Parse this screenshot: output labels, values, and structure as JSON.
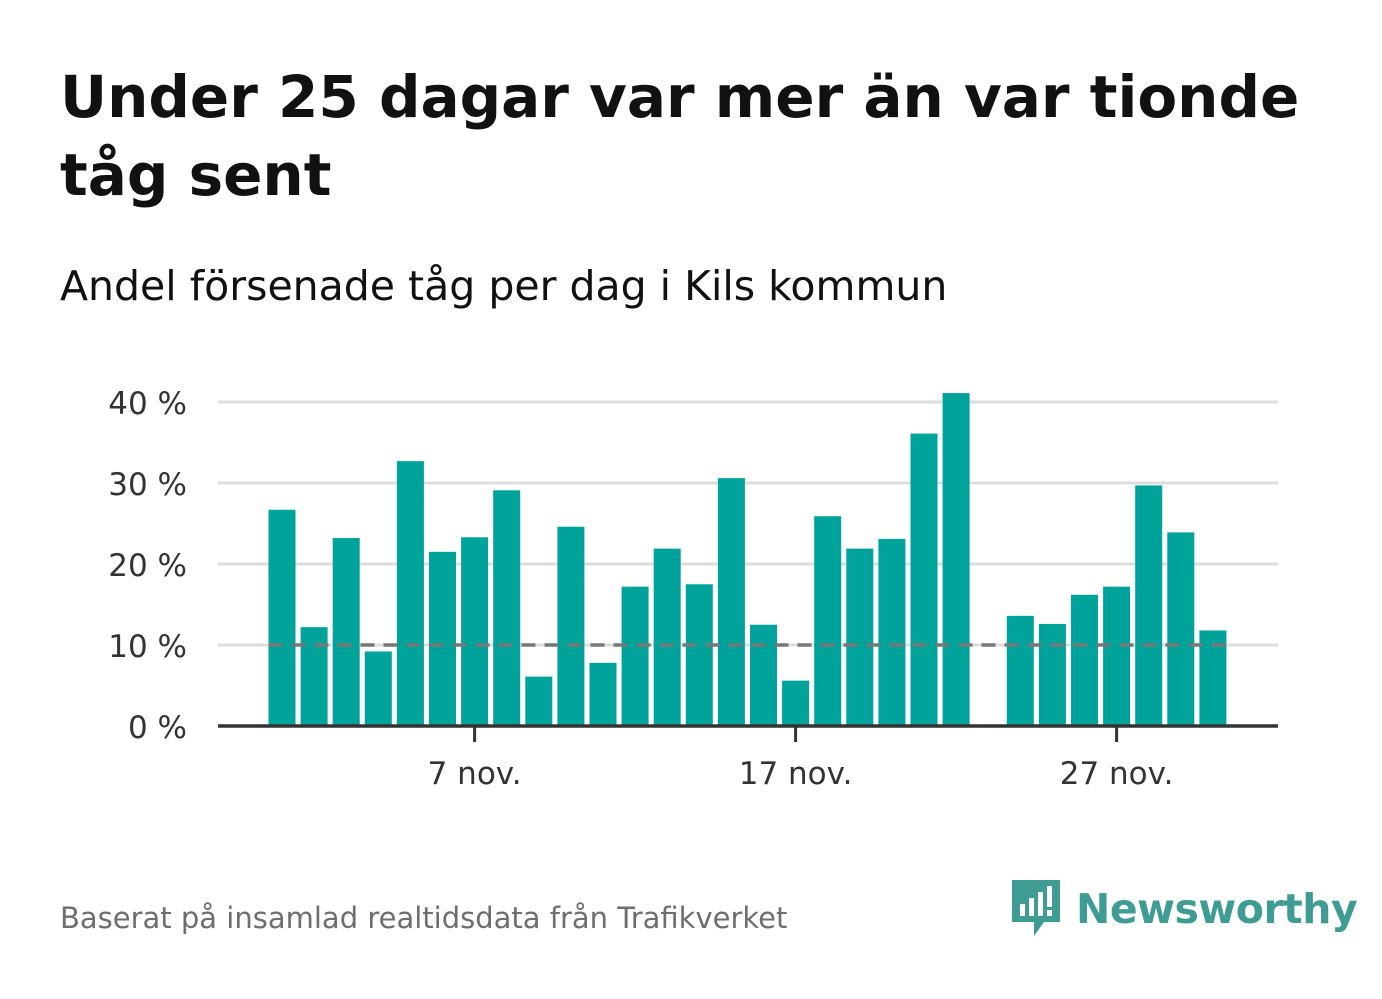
{
  "header": {
    "title": "Under 25 dagar var mer än var tionde tåg sent",
    "subtitle": "Andel försenade tåg per dag i Kils kommun"
  },
  "footer": {
    "source": "Baserat på insamlad realtidsdata från Trafikverket",
    "brand": "Newsworthy"
  },
  "colors": {
    "bar": "#00a39a",
    "reference_line": "#777777",
    "grid": "#dddddd",
    "axis": "#333333",
    "brand": "#3e9c92"
  },
  "chart_data": {
    "type": "bar",
    "x_unit": "day",
    "x": [
      "2024-11-01",
      "2024-11-02",
      "2024-11-03",
      "2024-11-04",
      "2024-11-05",
      "2024-11-06",
      "2024-11-07",
      "2024-11-08",
      "2024-11-09",
      "2024-11-10",
      "2024-11-11",
      "2024-11-12",
      "2024-11-13",
      "2024-11-14",
      "2024-11-15",
      "2024-11-16",
      "2024-11-17",
      "2024-11-18",
      "2024-11-19",
      "2024-11-20",
      "2024-11-21",
      "2024-11-22",
      "2024-11-23",
      "2024-11-24",
      "2024-11-25",
      "2024-11-26",
      "2024-11-27",
      "2024-11-28",
      "2024-11-29",
      "2024-11-30"
    ],
    "values": [
      26.7,
      12.2,
      23.2,
      9.2,
      32.7,
      21.5,
      23.3,
      29.1,
      6.1,
      24.6,
      7.8,
      17.2,
      21.9,
      17.5,
      30.6,
      12.5,
      5.6,
      25.9,
      21.9,
      23.1,
      36.1,
      41.1,
      null,
      13.6,
      12.6,
      16.2,
      17.2,
      29.7,
      23.9,
      11.8
    ],
    "reference_line": 10,
    "ylim": [
      0,
      40
    ],
    "yticks": [
      0,
      10,
      20,
      30,
      40
    ],
    "ytick_labels": [
      "0 %",
      "10 %",
      "20 %",
      "30 %",
      "40 %"
    ],
    "xticks": [
      "2024-11-07",
      "2024-11-17",
      "2024-11-27"
    ],
    "xtick_labels": [
      "7 nov.",
      "17 nov.",
      "27 nov."
    ],
    "grid": true,
    "legend": "none",
    "xlabel": "",
    "ylabel": ""
  }
}
